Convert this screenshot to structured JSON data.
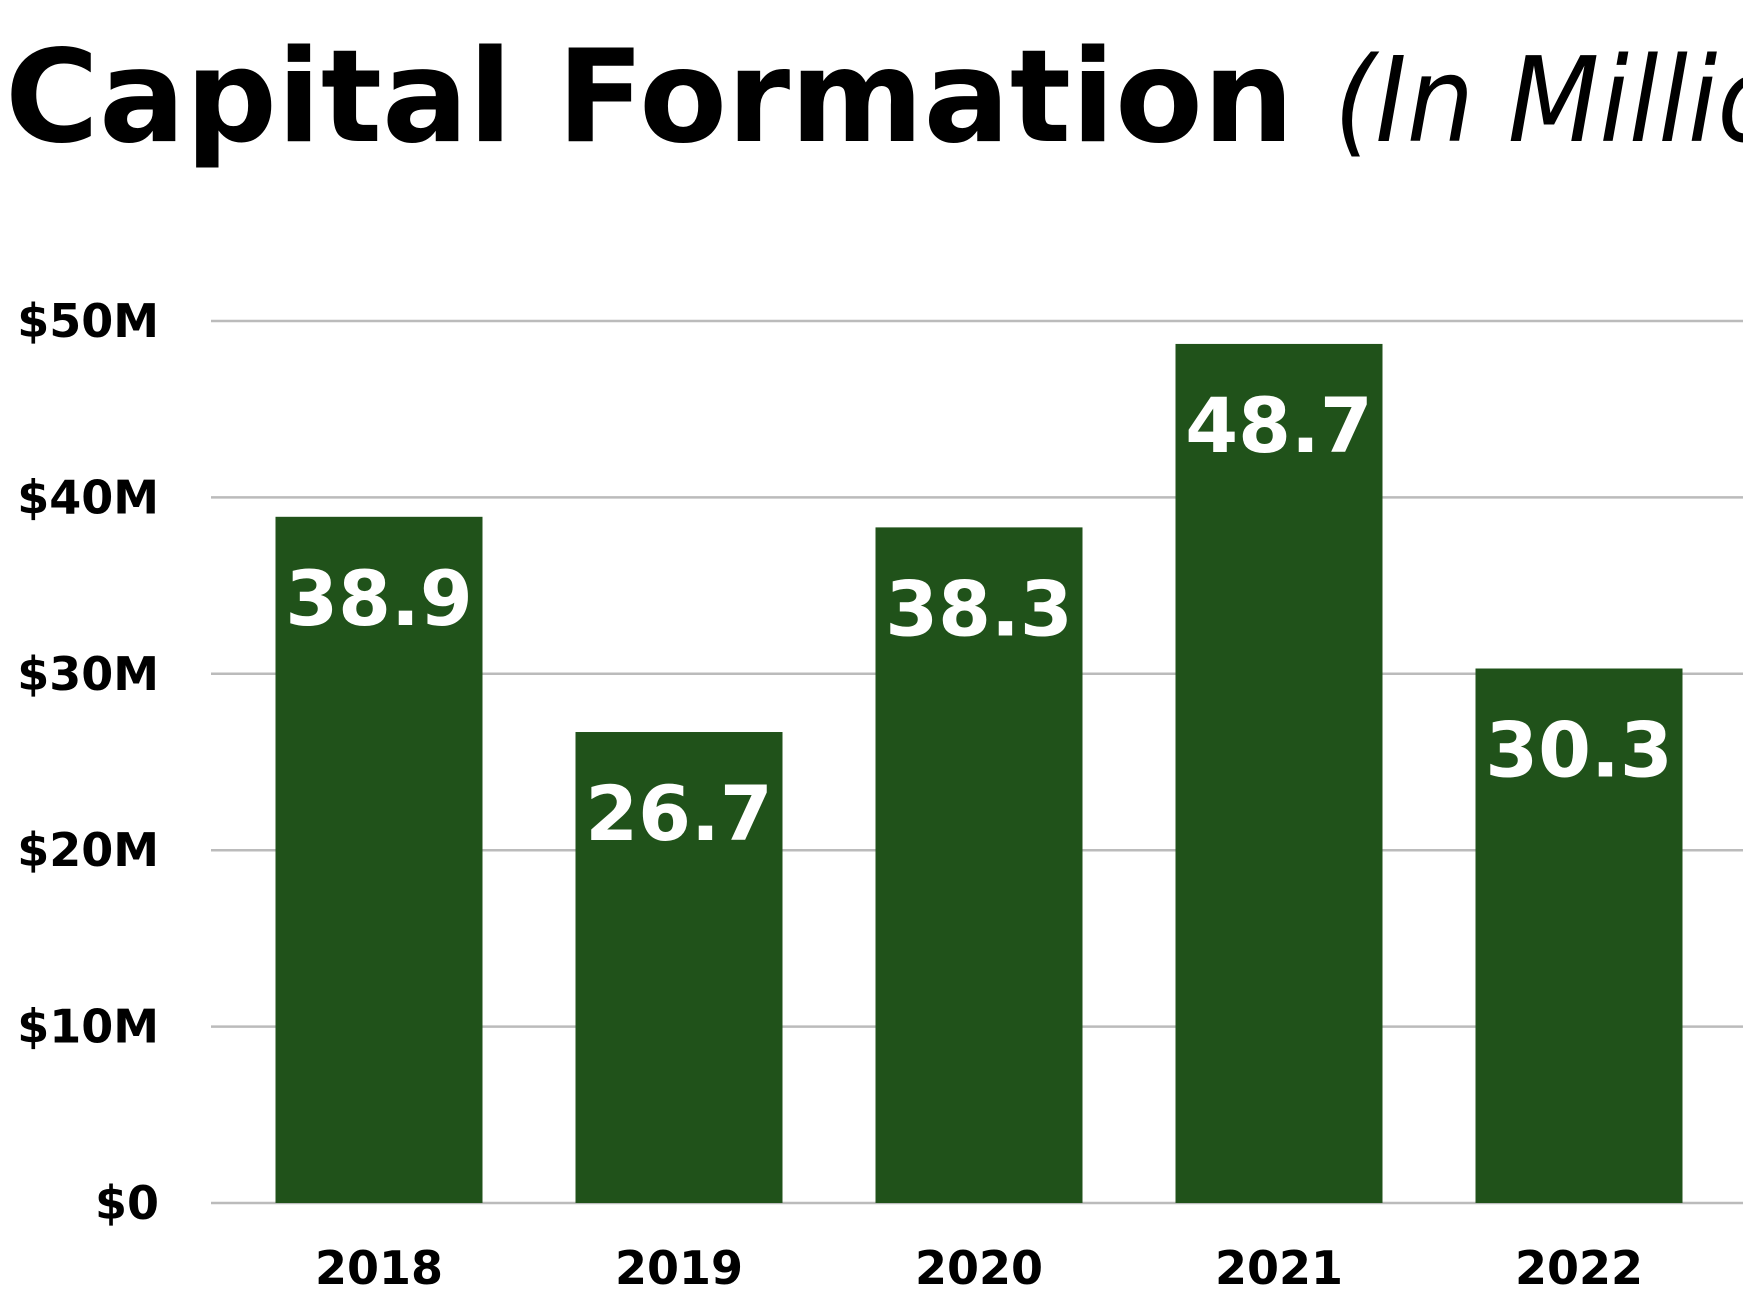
{
  "chart_data": {
    "type": "bar",
    "title": "Capital Formation",
    "subtitle": "(In Millions)",
    "categories": [
      "2018",
      "2019",
      "2020",
      "2021",
      "2022"
    ],
    "values": [
      38.9,
      26.7,
      38.3,
      48.7,
      30.3
    ],
    "color": "#20521a",
    "ylim": [
      0,
      50
    ],
    "yticks": [
      {
        "value": 0,
        "label": "$0"
      },
      {
        "value": 10,
        "label": "$10M"
      },
      {
        "value": 20,
        "label": "$20M"
      },
      {
        "value": 30,
        "label": "$30M"
      },
      {
        "value": 40,
        "label": "$40M"
      },
      {
        "value": 50,
        "label": "$50M"
      }
    ],
    "grid": true
  }
}
